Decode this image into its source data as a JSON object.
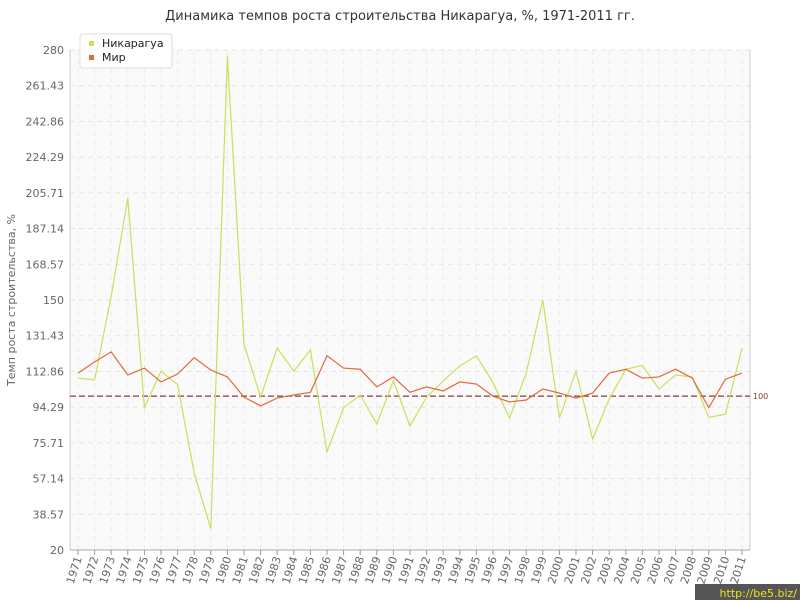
{
  "chart_data": {
    "type": "line",
    "title": "Динамика темпов роста строительства Никарагуа, %, 1971-2011 гг.",
    "y_label": "Темп роста строительства, %",
    "categories": [
      "1971",
      "1972",
      "1973",
      "1974",
      "1975",
      "1976",
      "1977",
      "1978",
      "1979",
      "1980",
      "1981",
      "1982",
      "1983",
      "1984",
      "1985",
      "1986",
      "1987",
      "1988",
      "1989",
      "1990",
      "1991",
      "1992",
      "1993",
      "1994",
      "1995",
      "1996",
      "1997",
      "1998",
      "1999",
      "2000",
      "2001",
      "2002",
      "2003",
      "2004",
      "2005",
      "2006",
      "2007",
      "2008",
      "2009",
      "2010",
      "2011"
    ],
    "series": [
      {
        "name": "Никарагуа",
        "color": "#c8e05c",
        "values": [
          109.4,
          108.4,
          152,
          203,
          94,
          113,
          106,
          60,
          31,
          277,
          127,
          99.5,
          125,
          113,
          124,
          71,
          94,
          100.6,
          85.5,
          108,
          84.5,
          99.5,
          107.9,
          115.7,
          121,
          107,
          88.6,
          112,
          150,
          88.6,
          113,
          77.7,
          98.5,
          114,
          116,
          103.7,
          111,
          110,
          89,
          90.6,
          125
        ]
      },
      {
        "name": "Мир",
        "color": "#e06a3c",
        "values": [
          112,
          117.8,
          123,
          111,
          114.6,
          107.4,
          111.5,
          120,
          113.6,
          110,
          99.5,
          94.9,
          99,
          100.6,
          102,
          121,
          114.6,
          114,
          104.8,
          110,
          102,
          104.8,
          102.7,
          107.4,
          106.3,
          100,
          97,
          98,
          103.7,
          101.6,
          99,
          101.6,
          112,
          114,
          109.4,
          110,
          114,
          109.4,
          94,
          108.8,
          112
        ]
      }
    ],
    "ylim": [
      20,
      280
    ],
    "yticks": [
      20,
      38.57,
      57.14,
      75.71,
      94.29,
      112.86,
      131.43,
      150,
      168.57,
      187.14,
      205.71,
      224.29,
      242.86,
      261.43,
      280
    ],
    "grid": true,
    "reference_line": 100,
    "reference_color": "#8b3a3a",
    "legend": "top-left",
    "watermark": "http://be5.biz/"
  }
}
